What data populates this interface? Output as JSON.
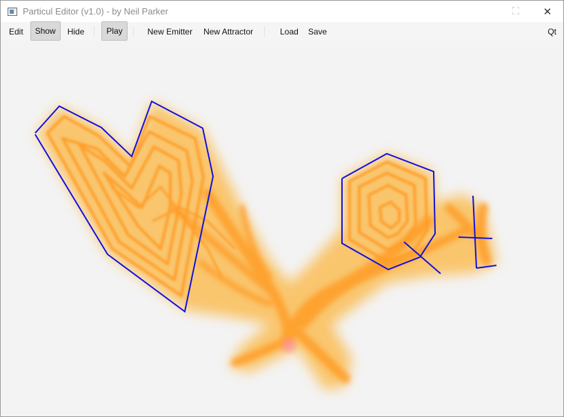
{
  "window": {
    "title": "Particul Editor (v1.0) - by Neil Parker",
    "minimize_glyph": "⛶",
    "close_glyph": "✕"
  },
  "toolbar": {
    "edit": "Edit",
    "show": "Show",
    "hide": "Hide",
    "play": "Play",
    "new_emitter": "New Emitter",
    "new_attractor": "New Attractor",
    "load": "Load",
    "save": "Save",
    "qt": "Qt"
  },
  "colors": {
    "particle": "#ffa000",
    "particle_core": "#ff9c28",
    "hot_spot": "#ff8fa0",
    "emitter_outline": "#1010e0"
  }
}
